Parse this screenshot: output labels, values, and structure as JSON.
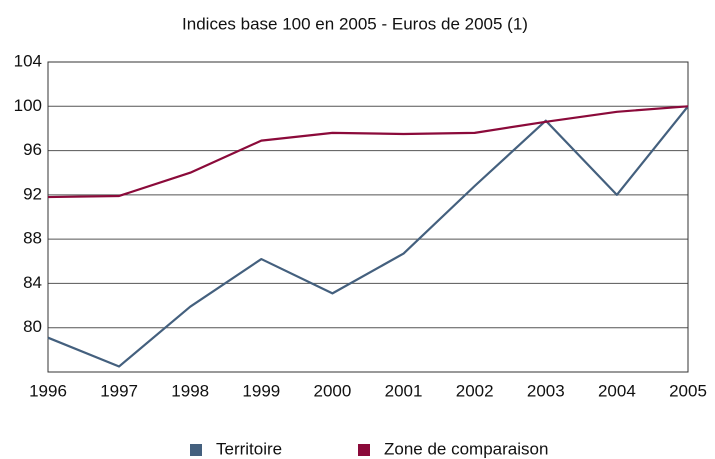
{
  "chart_data": {
    "type": "line",
    "title": "Indices base 100 en 2005 - Euros de 2005 (1)",
    "categories": [
      "1996",
      "1997",
      "1998",
      "1999",
      "2000",
      "2001",
      "2002",
      "2003",
      "2004",
      "2005"
    ],
    "series": [
      {
        "name": "Territoire",
        "color": "#44607e",
        "values": [
          79.1,
          76.5,
          81.9,
          86.2,
          83.1,
          86.7,
          92.8,
          98.7,
          92.0,
          100
        ]
      },
      {
        "name": "Zone de comparaison",
        "color": "#8b0a3a",
        "values": [
          91.8,
          91.9,
          94.0,
          96.9,
          97.6,
          97.5,
          97.6,
          98.6,
          99.5,
          100
        ]
      }
    ],
    "ylim": [
      76,
      104
    ],
    "yticks": [
      80,
      84,
      88,
      92,
      96,
      100,
      104
    ],
    "grid": true,
    "legend": "bottom"
  }
}
